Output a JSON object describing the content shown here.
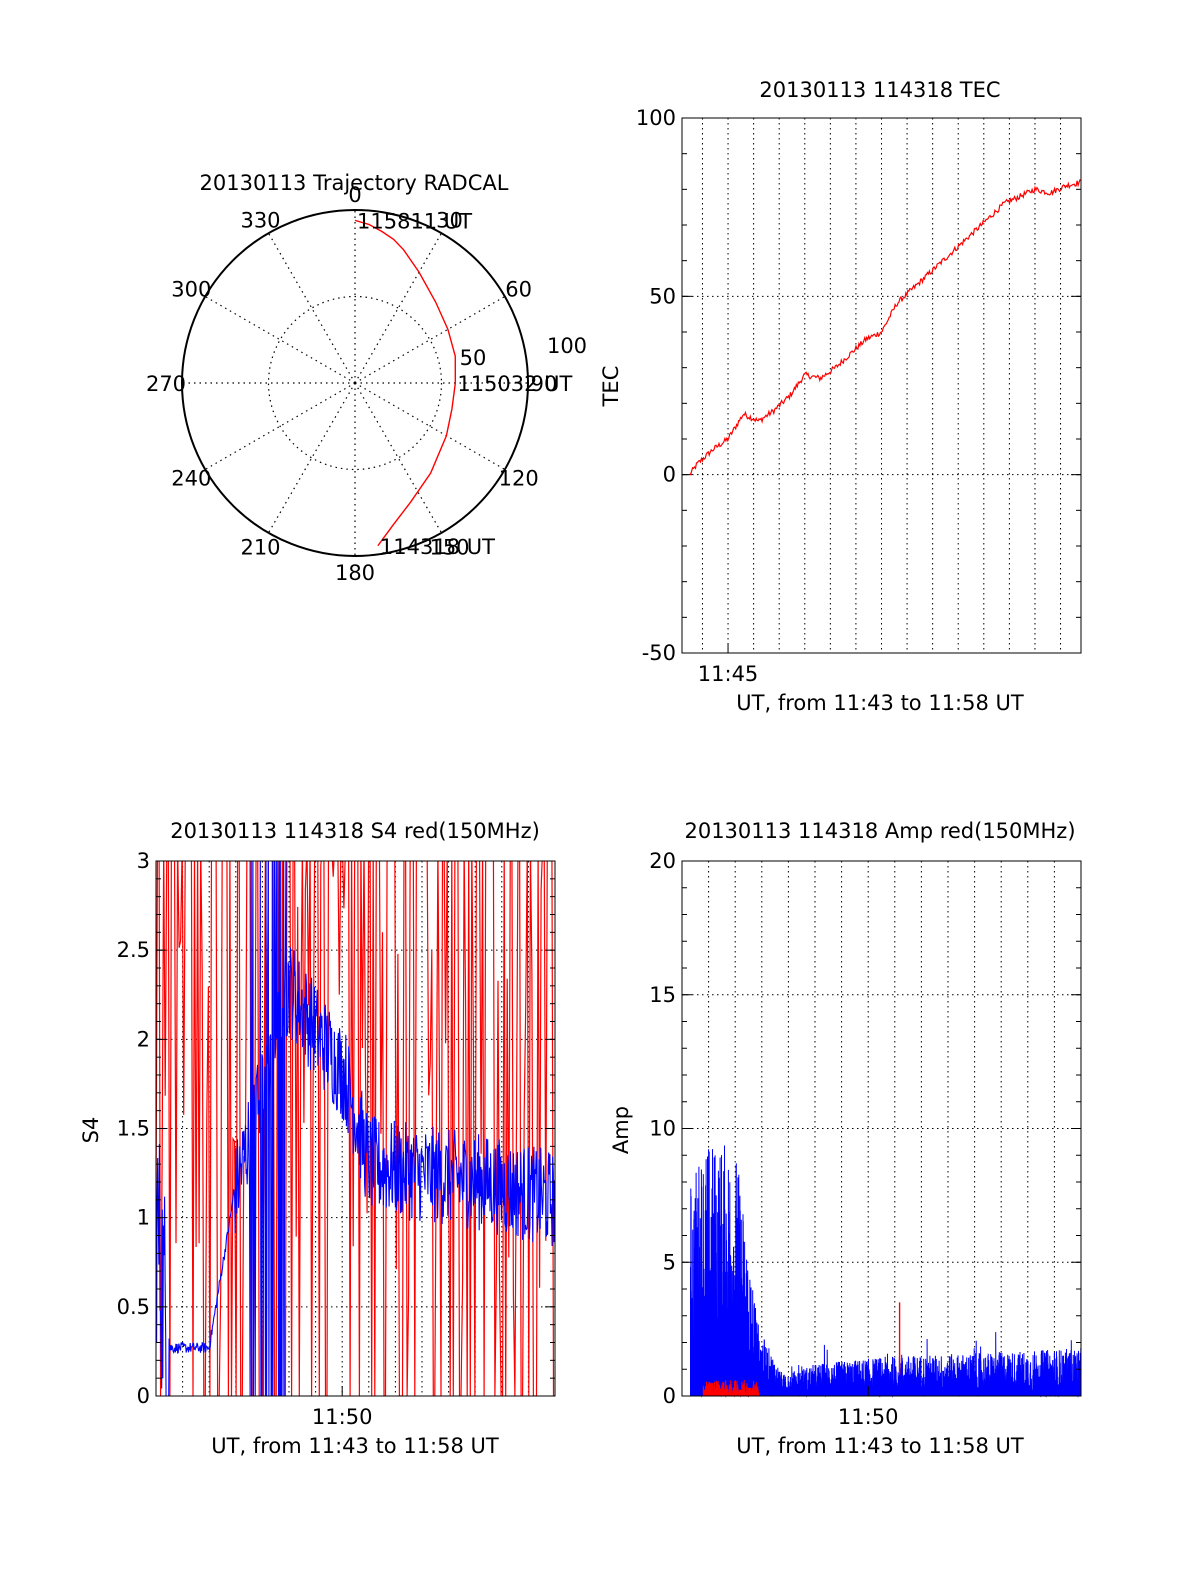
{
  "chart_data": [
    {
      "type": "polar",
      "title": "20130113 Trajectory RADCAL",
      "azimuth_labels": [
        "0",
        "30",
        "60",
        "90",
        "120",
        "150",
        "180",
        "210",
        "240",
        "270",
        "300",
        "330"
      ],
      "radial_labels": [
        "50",
        "100"
      ],
      "grid": true,
      "series": [
        {
          "color": "#ff0000",
          "points": [
            [
              172.0,
              95.0
            ],
            [
              165.0,
              85.0
            ],
            [
              155.0,
              76.0
            ],
            [
              140.0,
              68.0
            ],
            [
              120.0,
              61.0
            ],
            [
              105.0,
              58.0
            ],
            [
              90.0,
              58.0
            ],
            [
              75.0,
              60.0
            ],
            [
              60.0,
              62.0
            ],
            [
              45.0,
              66.0
            ],
            [
              30.0,
              74.0
            ],
            [
              20.0,
              82.0
            ],
            [
              15.0,
              86.0
            ],
            [
              10.0,
              89.0
            ],
            [
              5.0,
              92.0
            ],
            [
              0.0,
              94.0
            ]
          ]
        }
      ],
      "annotations": [
        {
          "text": "115811 UT",
          "azimuth": 0,
          "radius": 94
        },
        {
          "text": "115032 UT",
          "azimuth": 90,
          "radius": 58
        },
        {
          "text": "114318 UT",
          "azimuth": 172,
          "radius": 95
        }
      ]
    },
    {
      "type": "line",
      "title": "20130113 114318 TEC",
      "xlabel": "UT, from 11:43 to 11:58 UT",
      "ylabel": "TEC",
      "xlim": [
        11.72,
        11.98
      ],
      "ylim": [
        -50,
        100
      ],
      "xticks": [
        {
          "value": 11.75,
          "label": "11:45"
        }
      ],
      "yticks": [
        -50,
        0,
        50,
        100
      ],
      "grid": true,
      "series": [
        {
          "color": "#ff0000",
          "x": [
            11.725,
            11.73,
            11.74,
            11.75,
            11.76,
            11.77,
            11.78,
            11.79,
            11.8,
            11.81,
            11.82,
            11.83,
            11.84,
            11.85,
            11.86,
            11.87,
            11.88,
            11.89,
            11.9,
            11.91,
            11.92,
            11.93,
            11.94,
            11.95,
            11.96,
            11.97,
            11.98
          ],
          "values": [
            0,
            3,
            7,
            10,
            17,
            15,
            18,
            22,
            28,
            27,
            30,
            34,
            38,
            40,
            48,
            52,
            56,
            60,
            64,
            68,
            72,
            76,
            78,
            80,
            79,
            81,
            82
          ]
        }
      ]
    },
    {
      "type": "line",
      "title": "20130113 114318 S4 red(150MHz)",
      "xlabel": "UT, from 11:43 to 11:58 UT",
      "ylabel": "S4",
      "xlim": [
        11.71667,
        11.96667
      ],
      "ylim": [
        0,
        3
      ],
      "xticks": [
        {
          "value": 11.83333,
          "label": "11:50"
        }
      ],
      "yticks": [
        0,
        0.5,
        1,
        1.5,
        2,
        2.5,
        3
      ],
      "grid": true,
      "series": [
        {
          "color": "#ff0000",
          "noisy": true,
          "x": [
            11.7167,
            11.76,
            11.8,
            11.83,
            11.87,
            11.92,
            11.9667
          ],
          "values": [
            3.0,
            3.0,
            3.0,
            0.0,
            3.0,
            3.0,
            3.0
          ]
        },
        {
          "color": "#0000ff",
          "noisy": true,
          "x": [
            11.7167,
            11.725,
            11.75,
            11.765,
            11.8,
            11.82,
            11.835,
            11.85,
            11.88,
            11.92,
            11.9667
          ],
          "values": [
            1.0,
            0.27,
            0.27,
            1.1,
            2.3,
            2.0,
            1.8,
            1.3,
            1.25,
            1.2,
            1.1
          ]
        }
      ]
    },
    {
      "type": "line",
      "title": "20130113 114318 Amp red(150MHz)",
      "xlabel": "UT, from 11:43 to 11:58 UT",
      "ylabel": "Amp",
      "xlim": [
        11.71667,
        11.96667
      ],
      "ylim": [
        0,
        20
      ],
      "xticks": [
        {
          "value": 11.83333,
          "label": "11:50"
        }
      ],
      "yticks": [
        0,
        5,
        10,
        15,
        20
      ],
      "grid": true,
      "series": [
        {
          "color": "#0000ff",
          "noisy": true,
          "x": [
            11.722,
            11.73,
            11.75,
            11.765,
            11.78,
            11.8,
            11.85,
            11.9,
            11.9667
          ],
          "values": [
            8.0,
            9.5,
            9.5,
            2.5,
            0.8,
            1.2,
            1.5,
            1.6,
            1.8
          ]
        },
        {
          "color": "#ff0000",
          "noisy": true,
          "x": [
            11.73,
            11.755,
            11.8,
            11.83,
            11.85
          ],
          "values": [
            0.5,
            0.4,
            0.5,
            1.0,
            3.5
          ]
        }
      ]
    }
  ]
}
